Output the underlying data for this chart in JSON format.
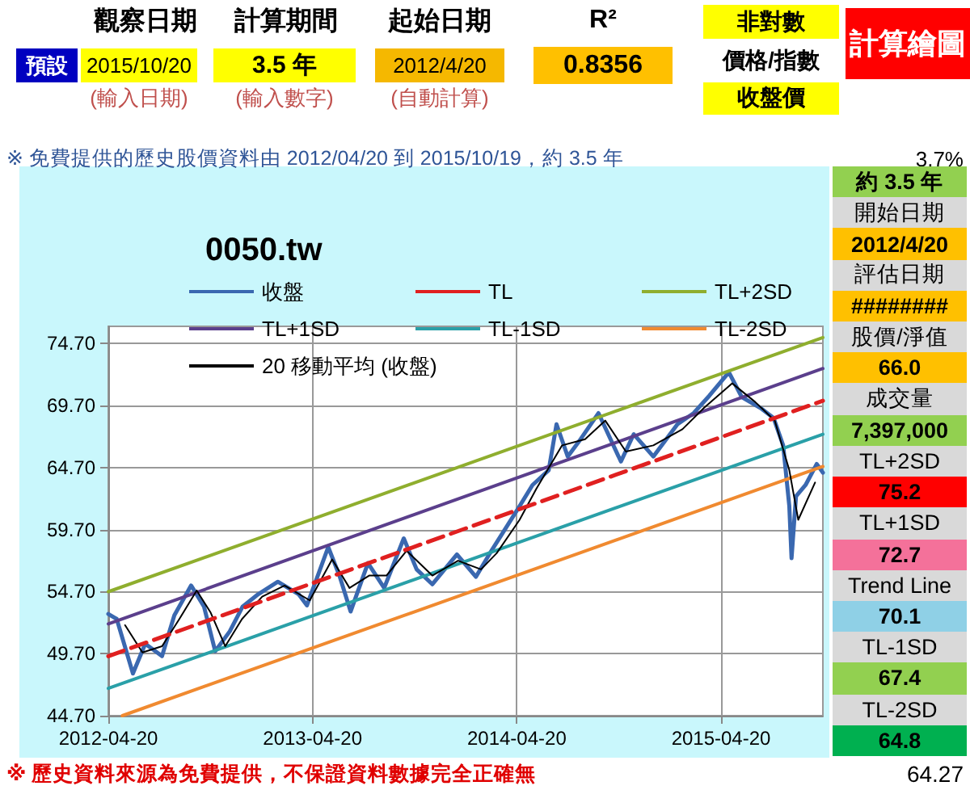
{
  "chart_data": {
    "type": "line",
    "title": "0050.tw",
    "xlim": [
      "2012-04-20",
      "2015-10-19"
    ],
    "xticks": [
      "2012-04-20",
      "2013-04-20",
      "2014-04-20",
      "2015-04-20"
    ],
    "ylim": [
      44.7,
      76.1
    ],
    "yticks": [
      {
        "value": 44.7,
        "label": "44.70"
      },
      {
        "value": 49.7,
        "label": "49.70"
      },
      {
        "value": 54.7,
        "label": "54.70"
      },
      {
        "value": 59.7,
        "label": "59.70"
      },
      {
        "value": 64.7,
        "label": "64.70"
      },
      {
        "value": 69.7,
        "label": "69.70"
      },
      {
        "value": 74.7,
        "label": "74.70"
      }
    ],
    "grid": true,
    "legend": "top",
    "marker": "none",
    "series": [
      {
        "name": "收盤",
        "color": "#3a68b0",
        "x": [
          "2012-04-20",
          "2012-05-05",
          "2012-06-03",
          "2012-06-25",
          "2012-07-25",
          "2012-08-16",
          "2012-09-15",
          "2012-10-08",
          "2012-10-28",
          "2012-11-23",
          "2012-12-16",
          "2013-01-13",
          "2013-02-17",
          "2013-03-26",
          "2013-04-10",
          "2013-05-18",
          "2013-06-07",
          "2013-06-27",
          "2013-07-28",
          "2013-08-26",
          "2013-09-30",
          "2013-10-23",
          "2013-11-20",
          "2014-01-03",
          "2014-02-06",
          "2014-03-07",
          "2014-04-25",
          "2014-05-18",
          "2014-06-16",
          "2014-06-30",
          "2014-07-20",
          "2014-08-12",
          "2014-09-13",
          "2014-10-23",
          "2014-11-15",
          "2014-12-20",
          "2015-02-01",
          "2015-03-02",
          "2015-03-30",
          "2015-05-04",
          "2015-05-27",
          "2015-06-30",
          "2015-07-23",
          "2015-08-09",
          "2015-08-20",
          "2015-08-24",
          "2015-09-01",
          "2015-09-18",
          "2015-10-08",
          "2015-10-19"
        ],
        "values": [
          52.9,
          52.5,
          48.1,
          50.5,
          49.5,
          52.8,
          55.2,
          53.5,
          49.9,
          51.5,
          53.5,
          54.5,
          55.5,
          54.5,
          53.6,
          58.3,
          56.0,
          53.1,
          57.0,
          55.0,
          59.0,
          56.5,
          55.3,
          57.7,
          55.9,
          58.1,
          61.6,
          63.3,
          64.5,
          68.2,
          65.6,
          67.0,
          69.1,
          65.2,
          67.4,
          65.6,
          68.2,
          69.1,
          70.5,
          72.4,
          70.4,
          69.5,
          68.7,
          66.5,
          61.6,
          57.4,
          62.4,
          63.3,
          65.0,
          64.3
        ]
      },
      {
        "name": "TL",
        "color": "#e02020",
        "line_style": "dashed",
        "x": [
          "2012-04-20",
          "2015-10-19"
        ],
        "values": [
          49.5,
          70.1
        ]
      },
      {
        "name": "TL+2SD",
        "color": "#8fae2e",
        "x": [
          "2012-04-20",
          "2015-10-19"
        ],
        "values": [
          54.7,
          75.2
        ]
      },
      {
        "name": "TL+1SD",
        "color": "#5b3f8c",
        "x": [
          "2012-04-20",
          "2015-10-19"
        ],
        "values": [
          52.1,
          72.7
        ]
      },
      {
        "name": "TL-1SD",
        "color": "#2aa0a8",
        "x": [
          "2012-04-20",
          "2015-10-19"
        ],
        "values": [
          46.9,
          67.4
        ]
      },
      {
        "name": "TL-2SD",
        "color": "#f08a30",
        "x": [
          "2012-05-15",
          "2015-10-19"
        ],
        "values": [
          44.7,
          64.8
        ]
      },
      {
        "name": "20 移動平均 (收盤)",
        "color": "#000000",
        "x": [
          "2012-05-20",
          "2012-06-20",
          "2012-07-25",
          "2012-08-25",
          "2012-09-25",
          "2012-10-20",
          "2012-11-15",
          "2012-12-15",
          "2013-01-20",
          "2013-03-01",
          "2013-04-15",
          "2013-05-25",
          "2013-06-25",
          "2013-07-30",
          "2013-08-30",
          "2013-10-05",
          "2013-11-20",
          "2014-01-05",
          "2014-02-15",
          "2014-03-15",
          "2014-04-25",
          "2014-05-25",
          "2014-07-10",
          "2014-08-20",
          "2014-09-25",
          "2014-11-01",
          "2014-12-20",
          "2015-02-10",
          "2015-03-20",
          "2015-05-10",
          "2015-06-20",
          "2015-07-25",
          "2015-08-20",
          "2015-09-05",
          "2015-10-05"
        ],
        "values": [
          52.0,
          49.8,
          50.3,
          52.5,
          54.8,
          53.0,
          50.3,
          52.5,
          54.3,
          55.2,
          54.0,
          57.3,
          55.0,
          56.0,
          56.0,
          58.0,
          56.0,
          57.2,
          56.5,
          57.8,
          60.5,
          63.0,
          66.5,
          67.0,
          68.5,
          66.0,
          66.5,
          67.8,
          69.5,
          71.5,
          70.0,
          68.5,
          64.5,
          60.5,
          63.5
        ]
      }
    ],
    "annotations": [
      "觀察日期",
      "預設",
      "2015/10/20",
      "(輸入日期)",
      "計算期間",
      "3.5 年",
      "(輸入數字)",
      "起始日期",
      "2012/4/20",
      "(自動計算)",
      "R²",
      "0.8356",
      "非對數",
      "價格/指數",
      "收盤價",
      "計算繪圖",
      "※ 免費提供的歷史股價資料由 2012/04/20 到 2015/10/19，約 3.5 年",
      "3.7%",
      "約 3.5 年",
      "開始日期",
      "2012/4/20",
      "評估日期",
      "########",
      "股價/淨值",
      "66.0",
      "成交量",
      "7,397,000",
      "TL+2SD",
      "75.2",
      "TL+1SD",
      "72.7",
      "Trend Line",
      "70.1",
      "TL-1SD",
      "67.4",
      "TL-2SD",
      "64.8",
      "※ 歷史資料來源為免費提供，不保證資料數據完全正確無",
      "64.27"
    ]
  }
}
